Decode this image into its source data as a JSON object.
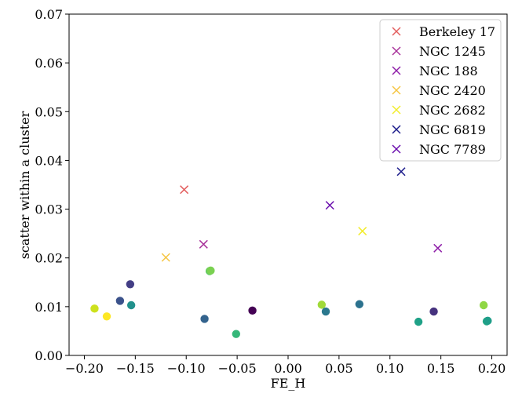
{
  "chart_data": {
    "type": "scatter",
    "xlabel": "FE_H",
    "ylabel": "scatter within a cluster",
    "xlim": [
      -0.215,
      0.215
    ],
    "ylim": [
      0.0,
      0.07
    ],
    "x_ticks": [
      -0.2,
      -0.15,
      -0.1,
      -0.05,
      0.0,
      0.05,
      0.1,
      0.15,
      0.2
    ],
    "x_tick_labels": [
      "−0.20",
      "−0.15",
      "−0.10",
      "−0.05",
      "0.00",
      "0.05",
      "0.10",
      "0.15",
      "0.20"
    ],
    "y_ticks": [
      0.0,
      0.01,
      0.02,
      0.03,
      0.04,
      0.05,
      0.06,
      0.07
    ],
    "y_tick_labels": [
      "0.00",
      "0.01",
      "0.02",
      "0.03",
      "0.04",
      "0.05",
      "0.06",
      "0.07"
    ],
    "legend_position": "top-right",
    "grid": false,
    "cluster_series": [
      {
        "name": "Berkeley 17",
        "color": "#e35f5f",
        "marker": "x",
        "x": -0.102,
        "y": 0.034
      },
      {
        "name": "NGC 1245",
        "color": "#a8329a",
        "marker": "x",
        "x": -0.083,
        "y": 0.0228
      },
      {
        "name": "NGC 188",
        "color": "#8e1ea8",
        "marker": "x",
        "x": 0.147,
        "y": 0.022
      },
      {
        "name": "NGC 2420",
        "color": "#f5c542",
        "marker": "x",
        "x": -0.12,
        "y": 0.0201
      },
      {
        "name": "NGC 2682",
        "color": "#f2ec2c",
        "marker": "x",
        "x": 0.073,
        "y": 0.0255
      },
      {
        "name": "NGC 6819",
        "color": "#1a1a8a",
        "marker": "x",
        "x": 0.111,
        "y": 0.0377
      },
      {
        "name": "NGC 7789",
        "color": "#6a0dad",
        "marker": "x",
        "x": 0.041,
        "y": 0.0308
      }
    ],
    "element_points": [
      {
        "x": -0.19,
        "y": 0.0096,
        "color": "#cde11d"
      },
      {
        "x": -0.178,
        "y": 0.008,
        "color": "#fde725"
      },
      {
        "x": -0.165,
        "y": 0.0112,
        "color": "#3b528b"
      },
      {
        "x": -0.155,
        "y": 0.0146,
        "color": "#433e85"
      },
      {
        "x": -0.154,
        "y": 0.0103,
        "color": "#21918c"
      },
      {
        "x": -0.082,
        "y": 0.0075,
        "color": "#33638d"
      },
      {
        "x": -0.077,
        "y": 0.0173,
        "color": "#5ec962"
      },
      {
        "x": -0.076,
        "y": 0.0174,
        "color": "#7ad151"
      },
      {
        "x": -0.051,
        "y": 0.0044,
        "color": "#35b779"
      },
      {
        "x": -0.035,
        "y": 0.0092,
        "color": "#440154"
      },
      {
        "x": 0.033,
        "y": 0.0104,
        "color": "#a0da39"
      },
      {
        "x": 0.037,
        "y": 0.009,
        "color": "#2a788e"
      },
      {
        "x": 0.07,
        "y": 0.0105,
        "color": "#2c728e"
      },
      {
        "x": 0.128,
        "y": 0.0069,
        "color": "#1fa187"
      },
      {
        "x": 0.143,
        "y": 0.009,
        "color": "#46327e"
      },
      {
        "x": 0.192,
        "y": 0.0103,
        "color": "#8fd744"
      },
      {
        "x": 0.195,
        "y": 0.007,
        "color": "#22a884"
      },
      {
        "x": 0.196,
        "y": 0.0071,
        "color": "#1f9e89"
      }
    ]
  }
}
